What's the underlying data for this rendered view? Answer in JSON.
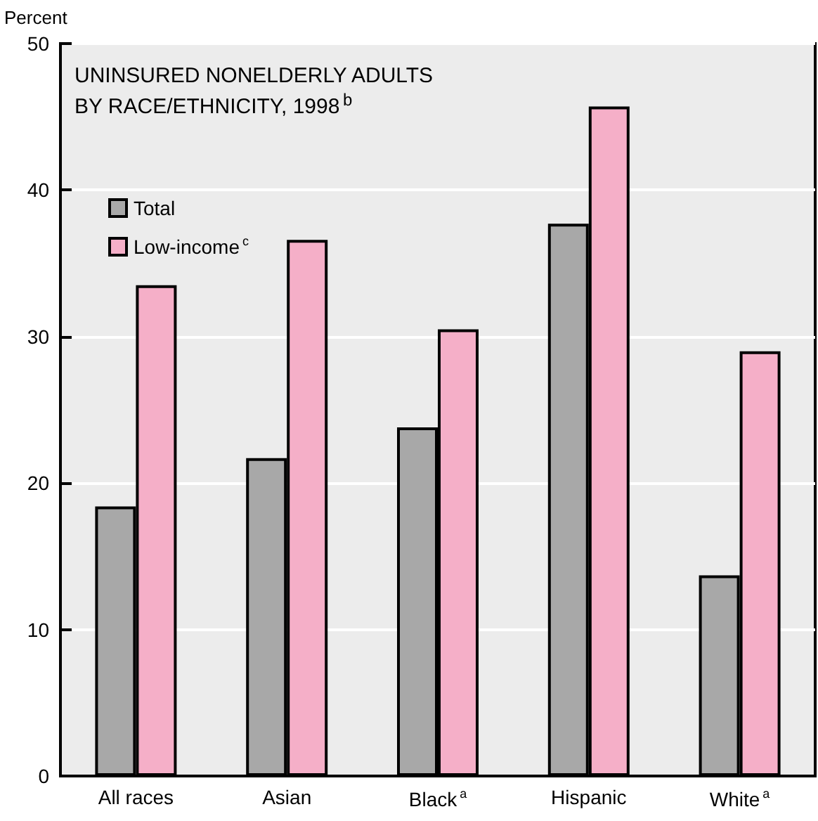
{
  "chart_data": {
    "type": "bar",
    "title": "UNINSURED NONELDERLY ADULTS\nBY RACE/ETHNICITY, 1998$^{b}$",
    "ylabel": "Percent",
    "categories": [
      "All races",
      "Asian",
      "Black$^{a}$",
      "Hispanic",
      "White$^{a}$"
    ],
    "series": [
      {
        "name": "Total",
        "color": "#a8a8a8",
        "values": [
          18.4,
          21.7,
          23.8,
          37.7,
          13.7
        ]
      },
      {
        "name": "Low-income$^{c}$",
        "color": "#f5afc8",
        "values": [
          33.5,
          36.6,
          30.5,
          45.7,
          29.0
        ]
      }
    ],
    "ylim": [
      0,
      50
    ],
    "yticks": [
      0,
      10,
      20,
      30,
      40,
      50
    ],
    "grid": "y",
    "legend": "top left"
  }
}
